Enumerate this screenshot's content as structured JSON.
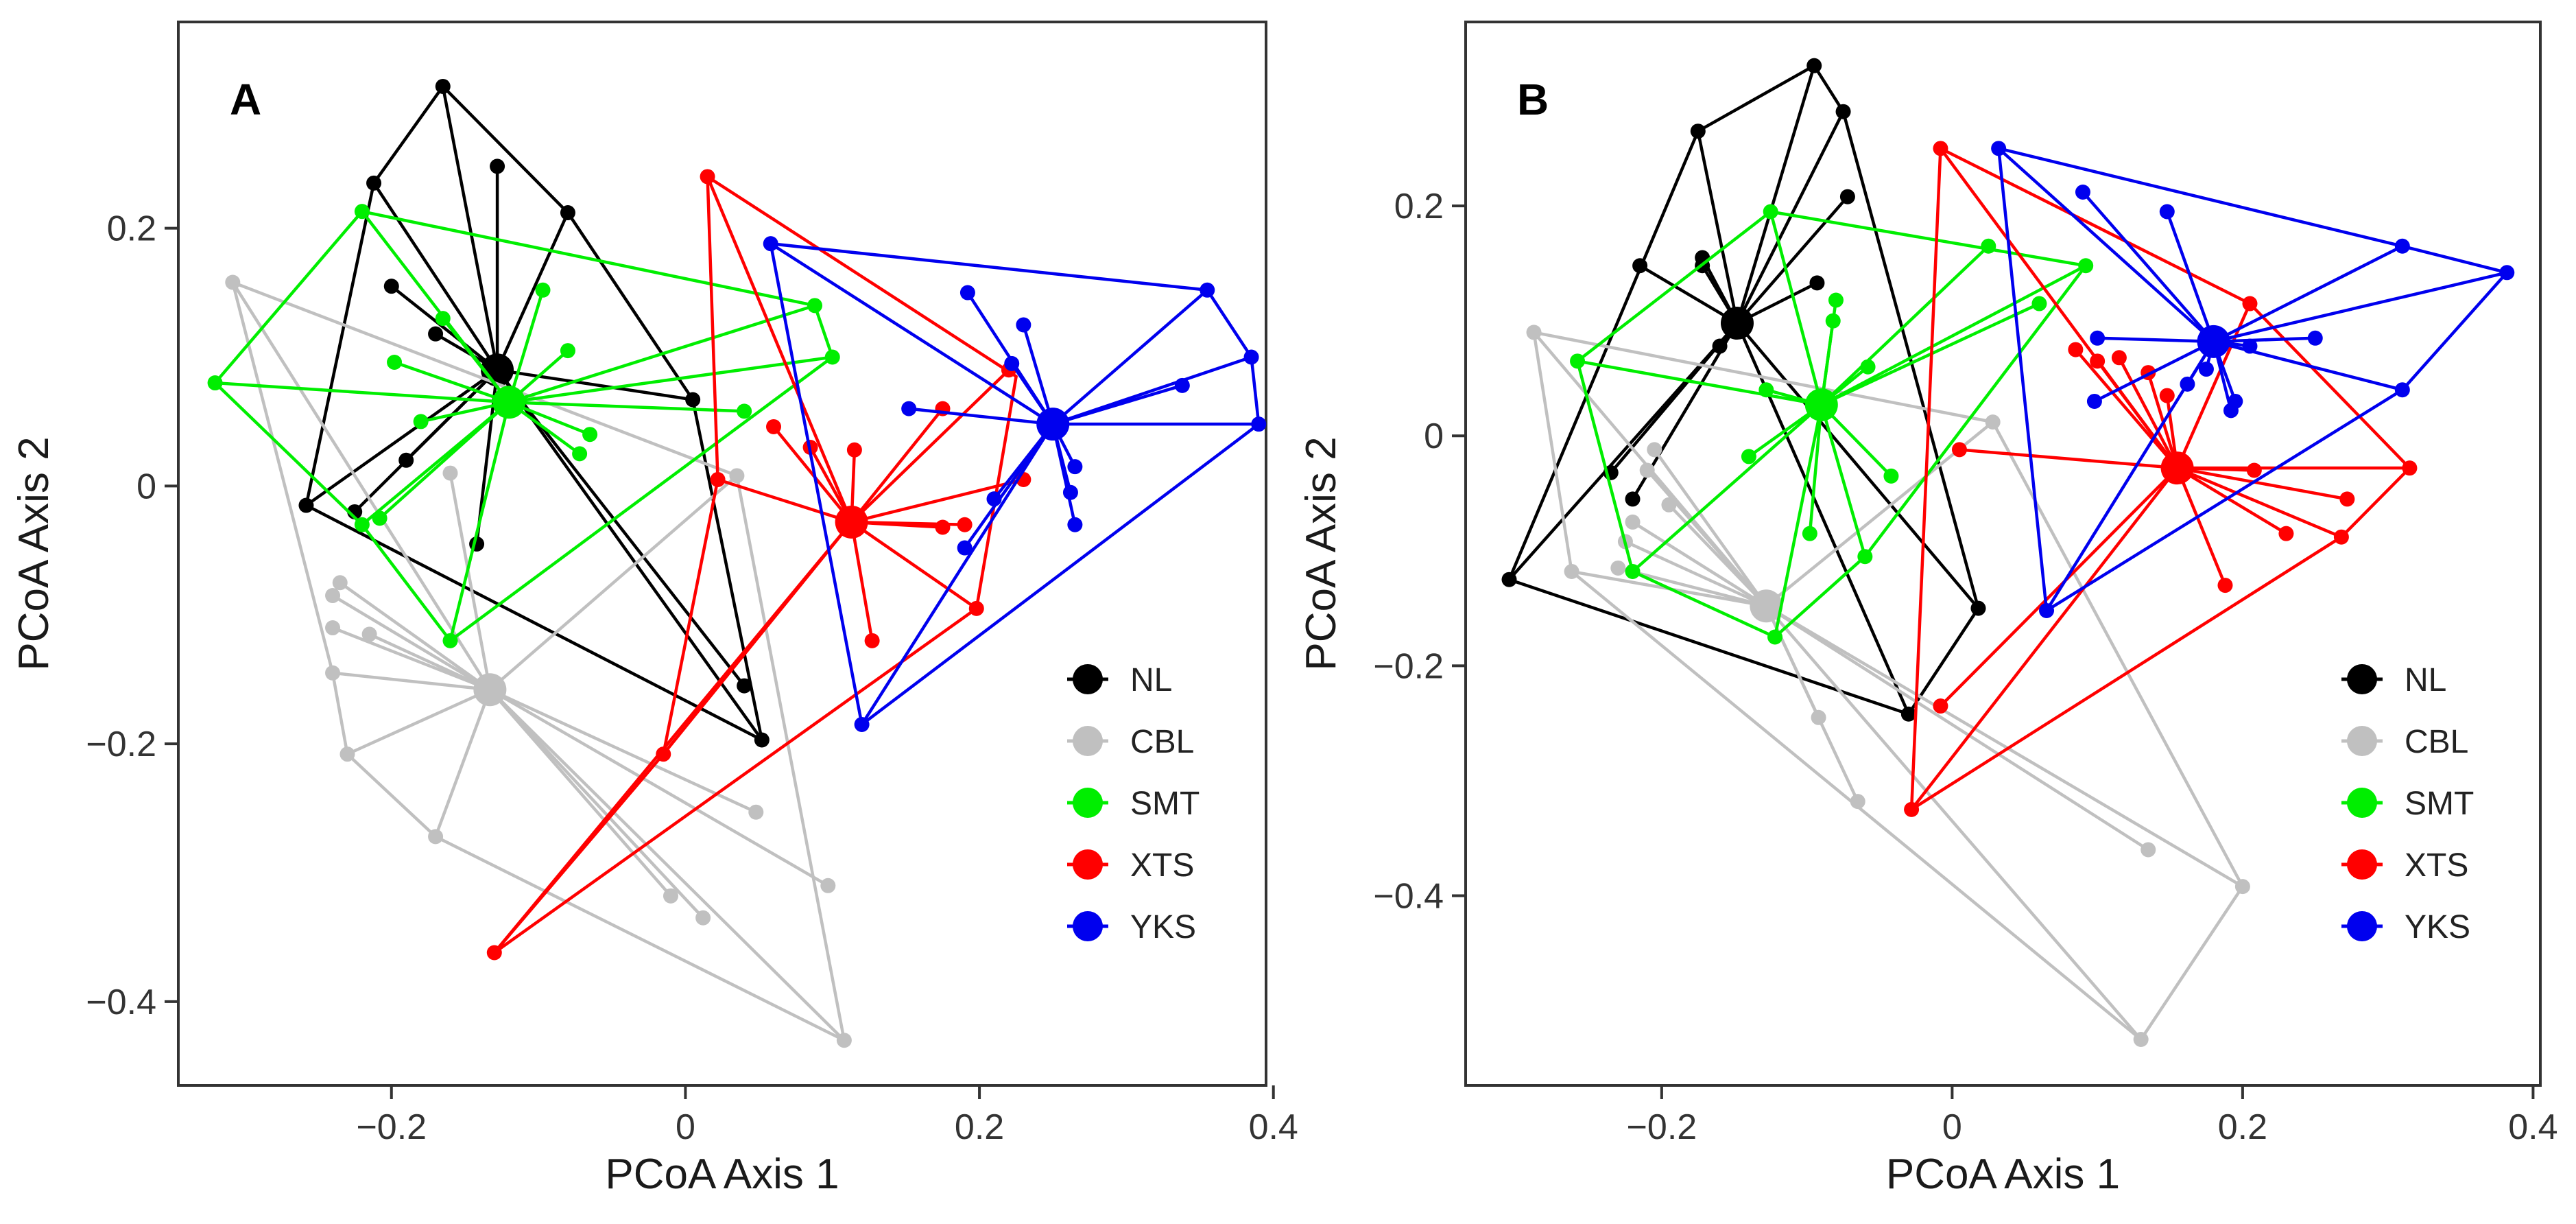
{
  "figure": {
    "description_groups": [
      "NL",
      "CBL",
      "SMT",
      "XTS",
      "YKS"
    ]
  },
  "chart_data": [
    {
      "type": "scatter",
      "panel": "A",
      "xlabel": "PCoA Axis 1",
      "ylabel": "PCoA Axis 2",
      "xlim": [
        -0.345,
        0.395
      ],
      "ylim": [
        -0.465,
        0.36
      ],
      "xticks": [
        -0.2,
        0,
        0.2,
        0.4
      ],
      "xticklabels": [
        "−0.2",
        "0",
        "0.2",
        "0.4"
      ],
      "yticks": [
        0.2,
        0,
        -0.2,
        -0.4
      ],
      "yticklabels": [
        "0.2",
        "0",
        "−0.2",
        "−0.4"
      ],
      "legend_position": "bottom-right",
      "series": [
        {
          "name": "NL",
          "color": "#000000",
          "centroid": [
            -0.128,
            0.09
          ],
          "points": [
            [
              -0.165,
              0.31
            ],
            [
              -0.128,
              0.248
            ],
            [
              -0.08,
              0.212
            ],
            [
              -0.212,
              0.235
            ],
            [
              -0.2,
              0.155
            ],
            [
              -0.17,
              0.118
            ],
            [
              -0.258,
              -0.015
            ],
            [
              -0.225,
              -0.02
            ],
            [
              -0.142,
              -0.045
            ],
            [
              0.005,
              0.067
            ],
            [
              0.04,
              -0.155
            ],
            [
              0.052,
              -0.197
            ],
            [
              -0.19,
              0.02
            ]
          ],
          "hull": [
            [
              -0.165,
              0.31
            ],
            [
              -0.08,
              0.212
            ],
            [
              0.005,
              0.067
            ],
            [
              0.052,
              -0.197
            ],
            [
              -0.258,
              -0.015
            ],
            [
              -0.212,
              0.235
            ]
          ]
        },
        {
          "name": "CBL",
          "color": "#c0c0c0",
          "centroid": [
            -0.133,
            -0.158
          ],
          "points": [
            [
              -0.308,
              0.158
            ],
            [
              -0.235,
              -0.075
            ],
            [
              -0.24,
              -0.085
            ],
            [
              -0.24,
              -0.11
            ],
            [
              -0.215,
              -0.115
            ],
            [
              -0.24,
              -0.145
            ],
            [
              -0.23,
              -0.208
            ],
            [
              -0.17,
              -0.272
            ],
            [
              -0.01,
              -0.318
            ],
            [
              0.012,
              -0.335
            ],
            [
              0.048,
              -0.253
            ],
            [
              0.097,
              -0.31
            ],
            [
              0.108,
              -0.43
            ],
            [
              0.035,
              0.008
            ],
            [
              -0.16,
              0.01
            ]
          ],
          "hull": [
            [
              -0.308,
              0.158
            ],
            [
              0.035,
              0.008
            ],
            [
              0.108,
              -0.43
            ],
            [
              -0.17,
              -0.272
            ],
            [
              -0.23,
              -0.208
            ],
            [
              -0.24,
              -0.145
            ]
          ]
        },
        {
          "name": "SMT",
          "color": "#00ee00",
          "centroid": [
            -0.12,
            0.065
          ],
          "points": [
            [
              -0.32,
              0.08
            ],
            [
              -0.22,
              0.213
            ],
            [
              -0.198,
              0.096
            ],
            [
              -0.22,
              -0.03
            ],
            [
              -0.208,
              -0.025
            ],
            [
              -0.16,
              -0.12
            ],
            [
              -0.165,
              0.13
            ],
            [
              -0.097,
              0.152
            ],
            [
              -0.08,
              0.105
            ],
            [
              -0.072,
              0.025
            ],
            [
              -0.065,
              0.04
            ],
            [
              0.04,
              0.058
            ],
            [
              0.088,
              0.14
            ],
            [
              0.1,
              0.1
            ],
            [
              -0.18,
              0.05
            ]
          ],
          "hull": [
            [
              -0.32,
              0.08
            ],
            [
              -0.22,
              0.213
            ],
            [
              0.088,
              0.14
            ],
            [
              0.1,
              0.1
            ],
            [
              -0.16,
              -0.12
            ],
            [
              -0.22,
              -0.03
            ]
          ]
        },
        {
          "name": "XTS",
          "color": "#ff0000",
          "centroid": [
            0.113,
            -0.028
          ],
          "points": [
            [
              0.015,
              0.24
            ],
            [
              0.022,
              0.005
            ],
            [
              0.06,
              0.046
            ],
            [
              0.085,
              0.03
            ],
            [
              0.115,
              0.028
            ],
            [
              0.175,
              0.06
            ],
            [
              0.23,
              0.005
            ],
            [
              0.19,
              -0.03
            ],
            [
              0.175,
              -0.032
            ],
            [
              0.198,
              -0.095
            ],
            [
              0.127,
              -0.12
            ],
            [
              -0.015,
              -0.208
            ],
            [
              -0.13,
              -0.362
            ],
            [
              0.22,
              0.09
            ]
          ],
          "hull": [
            [
              0.015,
              0.24
            ],
            [
              0.225,
              0.085
            ],
            [
              0.198,
              -0.095
            ],
            [
              -0.13,
              -0.362
            ],
            [
              -0.015,
              -0.208
            ],
            [
              0.022,
              0.005
            ]
          ]
        },
        {
          "name": "YKS",
          "color": "#0000ee",
          "centroid": [
            0.25,
            0.048
          ],
          "points": [
            [
              0.058,
              0.188
            ],
            [
              0.192,
              0.15
            ],
            [
              0.23,
              0.125
            ],
            [
              0.222,
              0.095
            ],
            [
              0.355,
              0.152
            ],
            [
              0.385,
              0.1
            ],
            [
              0.39,
              0.048
            ],
            [
              0.338,
              0.078
            ],
            [
              0.152,
              0.06
            ],
            [
              0.265,
              0.015
            ],
            [
              0.262,
              -0.005
            ],
            [
              0.265,
              -0.03
            ],
            [
              0.21,
              -0.01
            ],
            [
              0.19,
              -0.048
            ],
            [
              0.12,
              -0.185
            ]
          ],
          "hull": [
            [
              0.058,
              0.188
            ],
            [
              0.355,
              0.152
            ],
            [
              0.385,
              0.1
            ],
            [
              0.39,
              0.048
            ],
            [
              0.12,
              -0.185
            ]
          ]
        }
      ]
    },
    {
      "type": "scatter",
      "panel": "B",
      "xlabel": "PCoA Axis 1",
      "ylabel": "PCoA Axis 2",
      "xlim": [
        -0.335,
        0.405
      ],
      "ylim": [
        -0.565,
        0.36
      ],
      "xticks": [
        -0.2,
        0,
        0.2,
        0.4
      ],
      "xticklabels": [
        "−0.2",
        "0",
        "0.2",
        "0.4"
      ],
      "yticks": [
        0.2,
        0,
        -0.2,
        -0.4
      ],
      "yticklabels": [
        "0.2",
        "0",
        "−0.2",
        "−0.4"
      ],
      "legend_position": "bottom-right",
      "series": [
        {
          "name": "NL",
          "color": "#000000",
          "centroid": [
            -0.148,
            0.098
          ],
          "points": [
            [
              -0.095,
              0.322
            ],
            [
              -0.075,
              0.282
            ],
            [
              -0.175,
              0.265
            ],
            [
              -0.215,
              0.148
            ],
            [
              -0.172,
              0.155
            ],
            [
              -0.172,
              0.148
            ],
            [
              -0.16,
              0.078
            ],
            [
              -0.093,
              0.133
            ],
            [
              -0.072,
              0.208
            ],
            [
              -0.22,
              -0.055
            ],
            [
              -0.235,
              -0.032
            ],
            [
              -0.305,
              -0.125
            ],
            [
              -0.03,
              -0.242
            ],
            [
              0.018,
              -0.15
            ]
          ],
          "hull": [
            [
              -0.095,
              0.322
            ],
            [
              -0.075,
              0.282
            ],
            [
              0.018,
              -0.15
            ],
            [
              -0.03,
              -0.242
            ],
            [
              -0.305,
              -0.125
            ],
            [
              -0.175,
              0.265
            ]
          ]
        },
        {
          "name": "CBL",
          "color": "#c0c0c0",
          "centroid": [
            -0.128,
            -0.148
          ],
          "points": [
            [
              -0.288,
              0.09
            ],
            [
              -0.262,
              -0.118
            ],
            [
              -0.22,
              -0.075
            ],
            [
              -0.225,
              -0.092
            ],
            [
              -0.23,
              -0.115
            ],
            [
              -0.205,
              -0.012
            ],
            [
              -0.21,
              -0.03
            ],
            [
              -0.195,
              -0.06
            ],
            [
              -0.092,
              -0.245
            ],
            [
              -0.065,
              -0.318
            ],
            [
              0.135,
              -0.36
            ],
            [
              0.2,
              -0.392
            ],
            [
              0.13,
              -0.525
            ],
            [
              0.028,
              0.012
            ]
          ],
          "hull": [
            [
              -0.288,
              0.09
            ],
            [
              0.028,
              0.012
            ],
            [
              0.2,
              -0.392
            ],
            [
              0.13,
              -0.525
            ],
            [
              -0.262,
              -0.118
            ]
          ]
        },
        {
          "name": "SMT",
          "color": "#00ee00",
          "centroid": [
            -0.09,
            0.027
          ],
          "points": [
            [
              -0.125,
              0.195
            ],
            [
              -0.258,
              0.065
            ],
            [
              -0.128,
              0.04
            ],
            [
              -0.14,
              -0.018
            ],
            [
              -0.22,
              -0.118
            ],
            [
              -0.122,
              -0.175
            ],
            [
              -0.098,
              -0.085
            ],
            [
              -0.08,
              0.118
            ],
            [
              -0.082,
              0.1
            ],
            [
              -0.058,
              0.06
            ],
            [
              -0.042,
              -0.035
            ],
            [
              -0.06,
              -0.105
            ],
            [
              0.025,
              0.165
            ],
            [
              0.06,
              0.115
            ],
            [
              0.092,
              0.148
            ]
          ],
          "hull": [
            [
              -0.125,
              0.195
            ],
            [
              0.092,
              0.148
            ],
            [
              -0.06,
              -0.105
            ],
            [
              -0.122,
              -0.175
            ],
            [
              -0.22,
              -0.118
            ],
            [
              -0.258,
              0.065
            ]
          ]
        },
        {
          "name": "XTS",
          "color": "#ff0000",
          "centroid": [
            0.155,
            -0.028
          ],
          "points": [
            [
              -0.008,
              0.25
            ],
            [
              0.085,
              0.075
            ],
            [
              0.1,
              0.065
            ],
            [
              0.115,
              0.068
            ],
            [
              0.135,
              0.055
            ],
            [
              0.148,
              0.035
            ],
            [
              0.205,
              0.115
            ],
            [
              0.208,
              -0.03
            ],
            [
              0.272,
              -0.055
            ],
            [
              0.315,
              -0.028
            ],
            [
              0.268,
              -0.088
            ],
            [
              0.23,
              -0.085
            ],
            [
              0.188,
              -0.13
            ],
            [
              0.005,
              -0.012
            ],
            [
              -0.008,
              -0.235
            ],
            [
              -0.028,
              -0.325
            ]
          ],
          "hull": [
            [
              -0.008,
              0.25
            ],
            [
              0.205,
              0.115
            ],
            [
              0.315,
              -0.028
            ],
            [
              0.268,
              -0.088
            ],
            [
              -0.028,
              -0.325
            ]
          ]
        },
        {
          "name": "YKS",
          "color": "#0000ee",
          "centroid": [
            0.18,
            0.082
          ],
          "points": [
            [
              0.032,
              0.25
            ],
            [
              0.09,
              0.212
            ],
            [
              0.148,
              0.195
            ],
            [
              0.31,
              0.165
            ],
            [
              0.382,
              0.142
            ],
            [
              0.25,
              0.085
            ],
            [
              0.205,
              0.078
            ],
            [
              0.1,
              0.085
            ],
            [
              0.098,
              0.03
            ],
            [
              0.175,
              0.058
            ],
            [
              0.162,
              0.045
            ],
            [
              0.195,
              0.03
            ],
            [
              0.192,
              0.022
            ],
            [
              0.31,
              0.04
            ],
            [
              0.065,
              -0.152
            ]
          ],
          "hull": [
            [
              0.032,
              0.25
            ],
            [
              0.31,
              0.165
            ],
            [
              0.382,
              0.142
            ],
            [
              0.31,
              0.04
            ],
            [
              0.065,
              -0.152
            ]
          ]
        }
      ]
    }
  ]
}
